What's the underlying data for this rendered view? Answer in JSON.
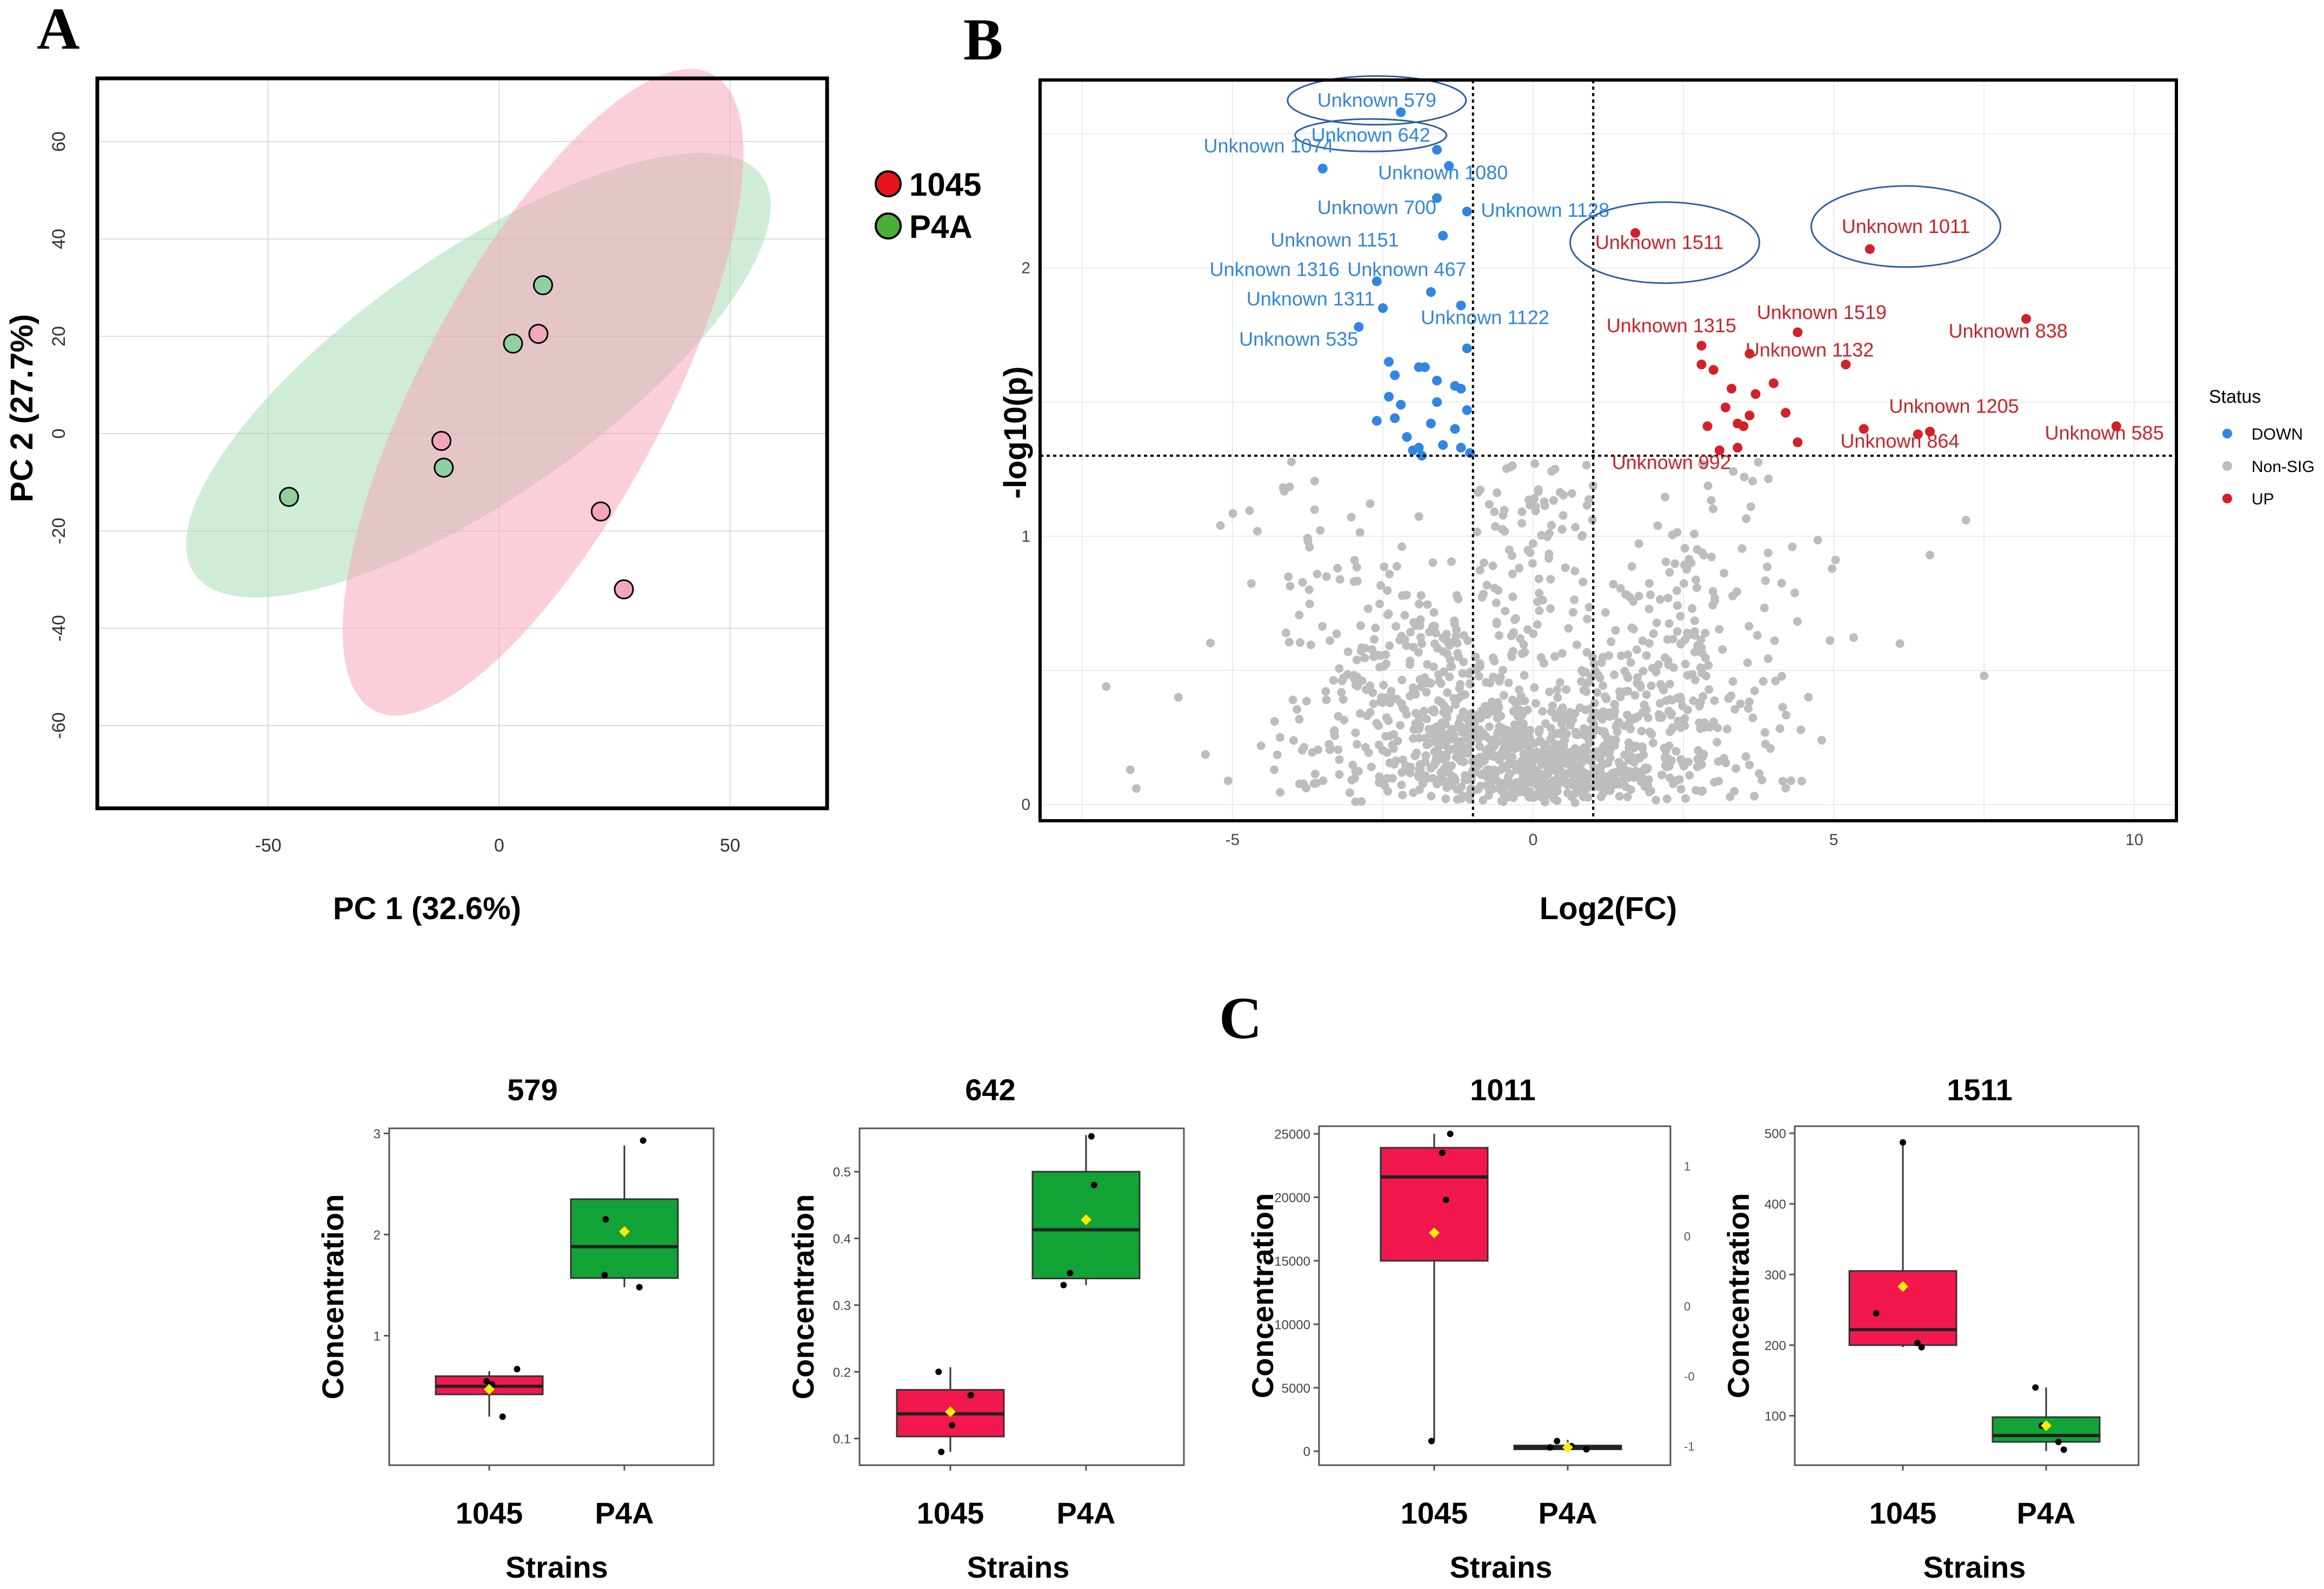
{
  "panels": {
    "a": "A",
    "b": "B",
    "c": "C"
  },
  "colors": {
    "strain_1045": "#f4a7b9",
    "strain_p4a": "#8fd19e",
    "ellipse_1045": "#f7a8bb",
    "ellipse_p4a": "#a6ddb6",
    "legend_1045": "#e8141c",
    "legend_p4a": "#4caf35",
    "down": "#2f86e3",
    "up": "#d62027",
    "nonsig": "#bdbdbd",
    "box_1045": "#f2184d",
    "box_p4a": "#12a337",
    "mean_marker": "#ffea00"
  },
  "chart_data": [
    {
      "type": "scatter",
      "title": "",
      "xlabel": "PC 1 (32.6%)",
      "ylabel": "PC 2 (27.7%)",
      "xlim": [
        -87,
        71
      ],
      "ylim": [
        -77,
        73
      ],
      "xticks": [
        -50,
        0,
        50
      ],
      "xtick_labels": [
        "-50",
        "0",
        "50"
      ],
      "yticks": [
        -60,
        -40,
        -20,
        0,
        20,
        40,
        60
      ],
      "ytick_labels": [
        "-60",
        "-40",
        "-20",
        "0",
        "20",
        "40",
        "60"
      ],
      "legend": [
        "1045",
        "P4A"
      ],
      "series": [
        {
          "name": "1045",
          "points": [
            [
              8.5,
              20.5
            ],
            [
              -12.5,
              -1.5
            ],
            [
              22,
              -16
            ],
            [
              27,
              -32
            ]
          ]
        },
        {
          "name": "P4A",
          "points": [
            [
              9.5,
              30.5
            ],
            [
              3,
              18.5
            ],
            [
              -12,
              -7
            ],
            [
              -45.5,
              -13
            ]
          ]
        }
      ],
      "ellipses": [
        {
          "group": "P4A",
          "cx": -4.5,
          "cy": 12,
          "rx": 75,
          "ry": 25,
          "angle_deg": 35
        },
        {
          "group": "1045",
          "cx": 9.5,
          "cy": 8.5,
          "rx": 78,
          "ry": 25,
          "angle_deg": 62
        }
      ]
    },
    {
      "type": "scatter",
      "title": "",
      "xlabel": "Log2(FC)",
      "ylabel": "-log10(p)",
      "xlim": [
        -8.2,
        10.7
      ],
      "ylim": [
        -0.06,
        2.7
      ],
      "xticks": [
        -5,
        0,
        5,
        10
      ],
      "xtick_labels": [
        "-5",
        "0",
        "5",
        "10"
      ],
      "yticks": [
        0,
        1,
        2
      ],
      "ytick_labels": [
        "0",
        "1",
        "2"
      ],
      "thresholds": {
        "x": [
          -1,
          1
        ],
        "y": 1.3
      },
      "legend_title": "Status",
      "legend": [
        "DOWN",
        "Non-SIG",
        "UP"
      ],
      "background_point_count": 1400,
      "down_points": [
        [
          -2.2,
          2.58
        ],
        [
          -3.5,
          2.37
        ],
        [
          -1.6,
          2.44
        ],
        [
          -1.4,
          2.38
        ],
        [
          -1.6,
          2.26
        ],
        [
          -1.1,
          2.21
        ],
        [
          -1.5,
          2.12
        ],
        [
          -2.6,
          1.95
        ],
        [
          -1.7,
          1.91
        ],
        [
          -2.5,
          1.85
        ],
        [
          -1.2,
          1.86
        ],
        [
          -2.9,
          1.78
        ],
        [
          -2.4,
          1.65
        ],
        [
          -2.3,
          1.6
        ],
        [
          -1.9,
          1.63
        ],
        [
          -1.8,
          1.63
        ],
        [
          -1.1,
          1.7
        ],
        [
          -1.6,
          1.58
        ],
        [
          -1.3,
          1.56
        ],
        [
          -1.2,
          1.55
        ],
        [
          -2.4,
          1.52
        ],
        [
          -2.2,
          1.49
        ],
        [
          -1.6,
          1.5
        ],
        [
          -1.1,
          1.47
        ],
        [
          -2.6,
          1.43
        ],
        [
          -2.3,
          1.44
        ],
        [
          -1.7,
          1.42
        ],
        [
          -1.3,
          1.4
        ],
        [
          -2.1,
          1.37
        ],
        [
          -1.5,
          1.34
        ],
        [
          -1.9,
          1.33
        ],
        [
          -1.2,
          1.33
        ],
        [
          -2.0,
          1.32
        ],
        [
          -1.05,
          1.31
        ],
        [
          -1.85,
          1.3
        ]
      ],
      "up_points": [
        [
          1.7,
          2.13
        ],
        [
          5.6,
          2.07
        ],
        [
          8.2,
          1.81
        ],
        [
          4.4,
          1.76
        ],
        [
          2.8,
          1.71
        ],
        [
          3.6,
          1.68
        ],
        [
          2.8,
          1.64
        ],
        [
          3.0,
          1.62
        ],
        [
          5.2,
          1.64
        ],
        [
          4.0,
          1.57
        ],
        [
          3.3,
          1.55
        ],
        [
          3.7,
          1.53
        ],
        [
          3.2,
          1.48
        ],
        [
          4.2,
          1.46
        ],
        [
          3.6,
          1.45
        ],
        [
          3.5,
          1.41
        ],
        [
          2.9,
          1.41
        ],
        [
          3.4,
          1.42
        ],
        [
          5.5,
          1.4
        ],
        [
          6.6,
          1.39
        ],
        [
          6.4,
          1.38
        ],
        [
          9.7,
          1.41
        ],
        [
          3.4,
          1.33
        ],
        [
          4.4,
          1.35
        ],
        [
          3.1,
          1.32
        ]
      ],
      "annotations": [
        {
          "text": "Unknown 579",
          "status": "DOWN",
          "x": -2.6,
          "y": 2.6
        },
        {
          "text": "Unknown 642",
          "status": "DOWN",
          "x": -2.7,
          "y": 2.47
        },
        {
          "text": "Unknown 1074",
          "status": "DOWN",
          "x": -4.4,
          "y": 2.43
        },
        {
          "text": "Unknown 1080",
          "status": "DOWN",
          "x": -1.5,
          "y": 2.33
        },
        {
          "text": "Unknown 700",
          "status": "DOWN",
          "x": -2.6,
          "y": 2.2
        },
        {
          "text": "Unknown 1128",
          "status": "DOWN",
          "x": 0.2,
          "y": 2.19
        },
        {
          "text": "Unknown 1151",
          "status": "DOWN",
          "x": -3.3,
          "y": 2.08
        },
        {
          "text": "Unknown 1316",
          "status": "DOWN",
          "x": -4.3,
          "y": 1.97
        },
        {
          "text": "Unknown 467",
          "status": "DOWN",
          "x": -2.1,
          "y": 1.97
        },
        {
          "text": "Unknown 1311",
          "status": "DOWN",
          "x": -3.7,
          "y": 1.86
        },
        {
          "text": "Unknown 1122",
          "status": "DOWN",
          "x": -0.8,
          "y": 1.79
        },
        {
          "text": "Unknown 535",
          "status": "DOWN",
          "x": -3.9,
          "y": 1.71
        },
        {
          "text": "Unknown 1511",
          "status": "UP",
          "x": 2.1,
          "y": 2.07
        },
        {
          "text": "Unknown 1011",
          "status": "UP",
          "x": 6.2,
          "y": 2.13
        },
        {
          "text": "Unknown 1315",
          "status": "UP",
          "x": 2.3,
          "y": 1.76
        },
        {
          "text": "Unknown 1519",
          "status": "UP",
          "x": 4.8,
          "y": 1.81
        },
        {
          "text": "Unknown 838",
          "status": "UP",
          "x": 7.9,
          "y": 1.74
        },
        {
          "text": "Unknown 1132",
          "status": "UP",
          "x": 4.6,
          "y": 1.67
        },
        {
          "text": "Unknown 1205",
          "status": "UP",
          "x": 7.0,
          "y": 1.46
        },
        {
          "text": "Unknown 864",
          "status": "UP",
          "x": 6.1,
          "y": 1.33
        },
        {
          "text": "Unknown 585",
          "status": "UP",
          "x": 9.5,
          "y": 1.36
        },
        {
          "text": "Unknown 992",
          "status": "UP",
          "x": 2.3,
          "y": 1.25
        }
      ],
      "highlighted": [
        "Unknown 579",
        "Unknown 642",
        "Unknown 1511",
        "Unknown 1011"
      ]
    },
    {
      "type": "box",
      "title": "579",
      "xlabel": "Strains",
      "ylabel": "Concentration",
      "categories": [
        "1045",
        "P4A"
      ],
      "ylim": [
        -0.28,
        3.05
      ],
      "yticks": [
        1,
        2,
        3
      ],
      "ytick_labels": [
        "1",
        "2",
        "3"
      ],
      "boxes": [
        {
          "group": "1045",
          "min": 0.2,
          "q1": 0.42,
          "median": 0.5,
          "q3": 0.6,
          "max": 0.65,
          "mean": 0.47,
          "points": [
            [
              0.05,
              0.52
            ],
            [
              0.25,
              0.2
            ],
            [
              0.52,
              0.67
            ],
            [
              -0.05,
              0.55
            ]
          ]
        },
        {
          "group": "P4A",
          "min": 1.48,
          "q1": 1.57,
          "median": 1.88,
          "q3": 2.35,
          "max": 2.88,
          "mean": 2.03,
          "points": [
            [
              -0.35,
              2.15
            ],
            [
              -0.37,
              1.6
            ],
            [
              0.28,
              1.48
            ],
            [
              0.35,
              2.93
            ]
          ]
        }
      ]
    },
    {
      "type": "box",
      "title": "642",
      "xlabel": "Strains",
      "ylabel": "Concentration",
      "categories": [
        "1045",
        "P4A"
      ],
      "ylim": [
        0.06,
        0.565
      ],
      "yticks": [
        0.1,
        0.2,
        0.3,
        0.4,
        0.5
      ],
      "ytick_labels": [
        "0.1",
        "0.2",
        "0.3",
        "0.4",
        "0.5"
      ],
      "boxes": [
        {
          "group": "1045",
          "min": 0.08,
          "q1": 0.103,
          "median": 0.137,
          "q3": 0.173,
          "max": 0.207,
          "mean": 0.14,
          "points": [
            [
              -0.22,
              0.2
            ],
            [
              -0.17,
              0.08
            ],
            [
              0.03,
              0.12
            ],
            [
              0.38,
              0.165
            ]
          ]
        },
        {
          "group": "P4A",
          "min": 0.33,
          "q1": 0.34,
          "median": 0.413,
          "q3": 0.5,
          "max": 0.555,
          "mean": 0.428,
          "points": [
            [
              -0.42,
              0.33
            ],
            [
              -0.3,
              0.348
            ],
            [
              0.1,
              0.553
            ],
            [
              0.15,
              0.48
            ]
          ]
        }
      ]
    },
    {
      "type": "box",
      "title": "1011",
      "xlabel": "Strains",
      "ylabel": "Concentration",
      "categories": [
        "1045",
        "P4A"
      ],
      "ylim": [
        -1100,
        25600
      ],
      "yticks": [
        0,
        5000,
        10000,
        15000,
        20000,
        25000
      ],
      "ytick_labels": [
        "0",
        "5000",
        "10000",
        "15000",
        "20000",
        "25000"
      ],
      "boxes": [
        {
          "group": "1045",
          "min": 800,
          "q1": 15000,
          "median": 21600,
          "q3": 23900,
          "max": 25000,
          "mean": 17200,
          "points": [
            [
              0.3,
              25000
            ],
            [
              0.15,
              23500
            ],
            [
              0.22,
              19800
            ],
            [
              -0.05,
              800
            ]
          ]
        },
        {
          "group": "P4A",
          "min": 100,
          "q1": 150,
          "median": 300,
          "q3": 450,
          "max": 900,
          "mean": 300,
          "points": [
            [
              -0.33,
              300
            ],
            [
              -0.2,
              800
            ],
            [
              0.07,
              400
            ],
            [
              0.35,
              150
            ]
          ]
        }
      ],
      "secondary_axis_tick_labels": [
        "1",
        "0",
        "0",
        "-0",
        "-1"
      ]
    },
    {
      "type": "box",
      "title": "1511",
      "xlabel": "Strains",
      "ylabel": "Concentration",
      "categories": [
        "1045",
        "P4A"
      ],
      "ylim": [
        30,
        510
      ],
      "yticks": [
        100,
        200,
        300,
        400,
        500
      ],
      "ytick_labels": [
        "100",
        "200",
        "300",
        "400",
        "500"
      ],
      "boxes": [
        {
          "group": "1045",
          "min": 197,
          "q1": 200,
          "median": 222,
          "q3": 305,
          "max": 487,
          "mean": 283,
          "points": [
            [
              -0.5,
              245
            ],
            [
              0.0,
              487
            ],
            [
              0.27,
              203
            ],
            [
              0.35,
              197
            ]
          ]
        },
        {
          "group": "P4A",
          "min": 50,
          "q1": 63,
          "median": 72,
          "q3": 98,
          "max": 140,
          "mean": 86,
          "points": [
            [
              -0.2,
              140
            ],
            [
              -0.08,
              86
            ],
            [
              0.23,
              63
            ],
            [
              0.33,
              52
            ]
          ]
        }
      ]
    }
  ]
}
